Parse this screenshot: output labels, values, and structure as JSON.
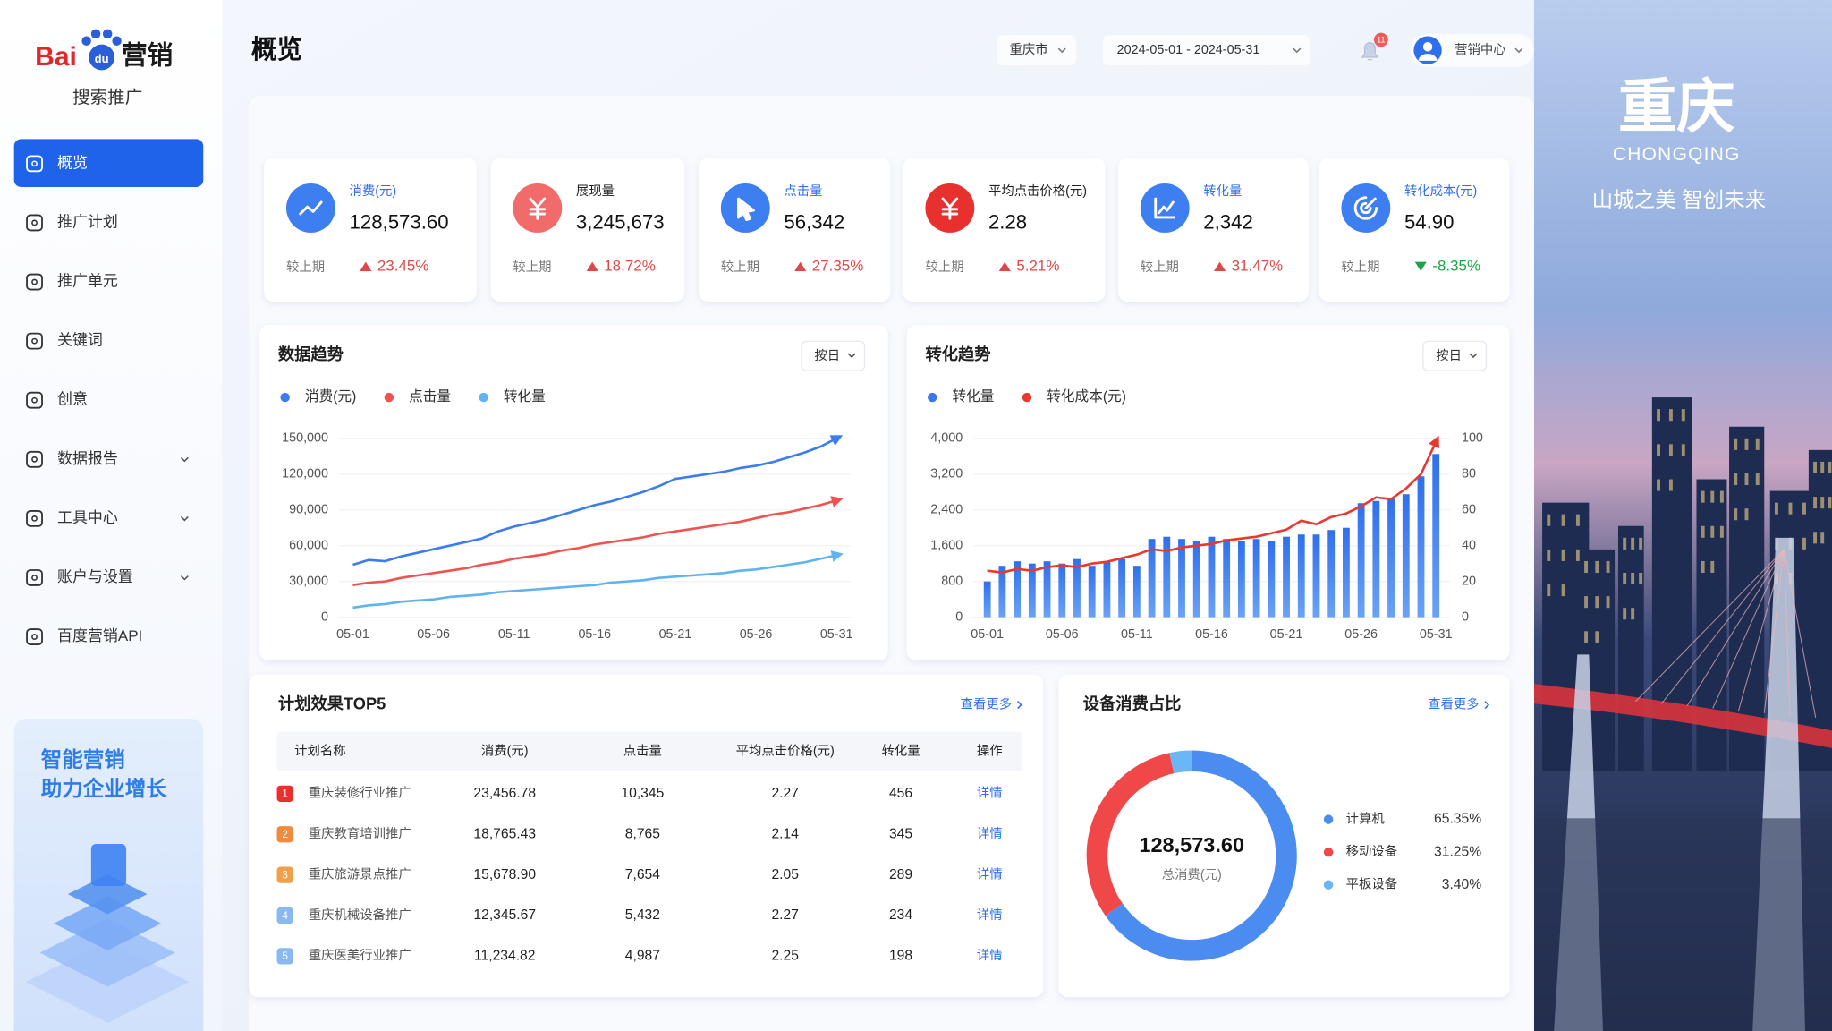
{
  "sidebar": {
    "brand": [
      "Bai",
      "du",
      "营销"
    ],
    "subtitle": "搜索推广",
    "menu": [
      {
        "label": "概览",
        "active": true
      },
      {
        "label": "推广计划"
      },
      {
        "label": "推广单元"
      },
      {
        "label": "关键词"
      },
      {
        "label": "创意"
      },
      {
        "label": "数据报告",
        "has_submenu": true
      },
      {
        "label": "工具中心",
        "has_submenu": true
      },
      {
        "label": "账户与设置",
        "has_submenu": true
      },
      {
        "label": "百度营销API"
      }
    ],
    "promo": [
      "智能营销",
      "助力企业增长"
    ]
  },
  "header": {
    "title": "概览",
    "city": "重庆市",
    "date_range": "2024-05-01 - 2024-05-31",
    "badge": "11",
    "user": "营销中心"
  },
  "banner": {
    "title": "重庆",
    "pinyin": "CHONGQING",
    "slogan": "山城之美  智创未来"
  },
  "kpis": [
    {
      "label": "消费(元)",
      "value": "128,573.60",
      "compare": "较上期",
      "change": "23.45%",
      "trend": "up"
    },
    {
      "label": "展现量",
      "value": "3,245,673",
      "compare": "较上期",
      "change": "18.72%",
      "trend": "up"
    },
    {
      "label": "点击量",
      "value": "56,342",
      "compare": "较上期",
      "change": "27.35%",
      "trend": "up"
    },
    {
      "label": "平均点击价格(元)",
      "value": "2.28",
      "compare": "较上期",
      "change": "5.21%",
      "trend": "up"
    },
    {
      "label": "转化量",
      "value": "2,342",
      "compare": "较上期",
      "change": "31.47%",
      "trend": "up"
    },
    {
      "label": "转化成本(元)",
      "value": "54.90",
      "compare": "较上期",
      "change": "-8.35%",
      "trend": "down"
    }
  ],
  "trend_chart": {
    "type": "line",
    "title": "数据趋势",
    "granularity": "按日",
    "categories": [
      "05-01",
      null,
      null,
      null,
      null,
      "05-06",
      null,
      null,
      null,
      null,
      "05-11",
      null,
      null,
      null,
      null,
      "05-16",
      null,
      null,
      null,
      null,
      "05-21",
      null,
      null,
      null,
      null,
      "05-26",
      null,
      null,
      null,
      null,
      "05-31"
    ],
    "ylim": [
      0,
      150000
    ],
    "yticks": [
      0,
      {
        "value": 30000,
        "label": "30,000"
      },
      {
        "value": 60000,
        "label": "60,000"
      },
      {
        "value": 90000,
        "label": "90,000"
      },
      {
        "value": 120000,
        "label": "120,000"
      },
      {
        "value": 150000,
        "label": "150,000"
      }
    ],
    "grid": true,
    "series": [
      {
        "name": "消费(元)",
        "color": "#3b7ded",
        "values": [
          44000,
          48000,
          47000,
          51000,
          54000,
          57000,
          60000,
          63000,
          66000,
          72000,
          76000,
          79000,
          82000,
          86000,
          90000,
          94000,
          97000,
          101000,
          105000,
          110000,
          116000,
          118000,
          120000,
          122000,
          125000,
          127000,
          130000,
          134000,
          138000,
          143000,
          150000
        ]
      },
      {
        "name": "点击量",
        "color": "#ef5350",
        "values": [
          27000,
          29000,
          30000,
          33000,
          35000,
          37000,
          39000,
          41000,
          44000,
          46000,
          49000,
          51000,
          53000,
          56000,
          58000,
          61000,
          63000,
          65000,
          67000,
          70000,
          72000,
          74000,
          76000,
          78000,
          80000,
          83000,
          86000,
          88000,
          91000,
          94000,
          98000
        ]
      },
      {
        "name": "转化量",
        "color": "#5fb3f0",
        "values": [
          8000,
          10000,
          11000,
          13000,
          14000,
          15000,
          17000,
          18000,
          19000,
          21000,
          22000,
          23000,
          24000,
          25000,
          26000,
          27000,
          29000,
          30000,
          31000,
          33000,
          34000,
          35000,
          36000,
          37000,
          39000,
          40000,
          42000,
          44000,
          46000,
          49000,
          52000
        ]
      }
    ]
  },
  "conversion_chart": {
    "type": "bar",
    "title": "转化趋势",
    "granularity": "按日",
    "categories": [
      "05-01",
      null,
      null,
      null,
      null,
      "05-06",
      null,
      null,
      null,
      null,
      "05-11",
      null,
      null,
      null,
      null,
      "05-16",
      null,
      null,
      null,
      null,
      "05-21",
      null,
      null,
      null,
      null,
      "05-26",
      null,
      null,
      null,
      null,
      "05-31"
    ],
    "ylim": [
      0,
      4000
    ],
    "yticks": [
      0,
      800,
      {
        "value": 1600,
        "label": "1,600"
      },
      {
        "value": 2400,
        "label": "2,400"
      },
      {
        "value": 3200,
        "label": "3,200"
      },
      {
        "value": 4000,
        "label": "4,000"
      }
    ],
    "y2lim": [
      0,
      100
    ],
    "y2ticks": [
      0,
      20,
      40,
      60,
      80,
      100
    ],
    "grid": true,
    "series": [
      {
        "name": "转化量",
        "color": "#3a78ee",
        "values": [
          800,
          1150,
          1250,
          1200,
          1250,
          1200,
          1300,
          1150,
          1250,
          1300,
          1150,
          1750,
          1800,
          1750,
          1700,
          1800,
          1750,
          1700,
          1750,
          1700,
          1800,
          1850,
          1850,
          1950,
          2000,
          2550,
          2600,
          2650,
          2750,
          3150,
          3650
        ]
      },
      {
        "name": "转化成本(元)",
        "color": "#e8392f",
        "type": "line",
        "axis": "y2",
        "values": [
          26,
          25,
          27,
          26,
          28,
          29,
          28,
          30,
          31,
          33,
          35,
          38,
          37,
          39,
          40,
          41,
          43,
          44,
          45,
          47,
          49,
          54,
          52,
          56,
          58,
          62,
          67,
          66,
          72,
          80,
          98
        ]
      }
    ]
  },
  "top_table": {
    "title": "计划效果TOP5",
    "more": "查看更多",
    "columns": [
      "计划名称",
      "消费(元)",
      "点击量",
      "平均点击价格(元)",
      "转化量",
      "操作"
    ],
    "rows": [
      {
        "rank": "1",
        "name": "重庆装修行业推广",
        "spend": "23,456.78",
        "clicks": "10,345",
        "cpc": "2.27",
        "conversions": "456",
        "action": "详情"
      },
      {
        "rank": "2",
        "name": "重庆教育培训推广",
        "spend": "18,765.43",
        "clicks": "8,765",
        "cpc": "2.14",
        "conversions": "345",
        "action": "详情"
      },
      {
        "rank": "3",
        "name": "重庆旅游景点推广",
        "spend": "15,678.90",
        "clicks": "7,654",
        "cpc": "2.05",
        "conversions": "289",
        "action": "详情"
      },
      {
        "rank": "4",
        "name": "重庆机械设备推广",
        "spend": "12,345.67",
        "clicks": "5,432",
        "cpc": "2.27",
        "conversions": "234",
        "action": "详情"
      },
      {
        "rank": "5",
        "name": "重庆医美行业推广",
        "spend": "11,234.82",
        "clicks": "4,987",
        "cpc": "2.25",
        "conversions": "198",
        "action": "详情"
      }
    ]
  },
  "device_chart": {
    "type": "pie",
    "title": "设备消费占比",
    "more": "查看更多",
    "center_value": "128,573.60",
    "center_label": "总消费(元)",
    "categories": [
      "计算机",
      "移动设备",
      "平板设备"
    ],
    "values": [
      65.35,
      31.25,
      3.4
    ],
    "value_labels": [
      "65.35%",
      "31.25%",
      "3.40%"
    ],
    "colors": [
      "#4a8cf0",
      "#f04848",
      "#6bb7f5"
    ]
  }
}
